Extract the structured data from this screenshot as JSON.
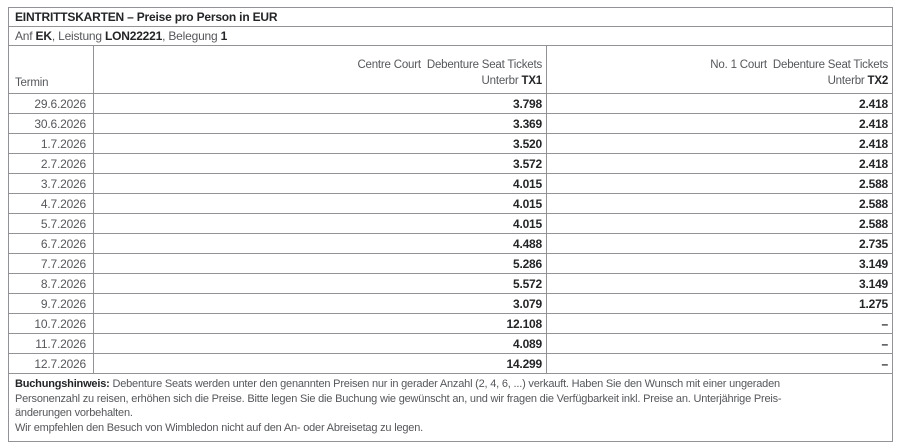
{
  "panel": {
    "title": "EINTRITTSKARTEN – Preise pro Person in EUR",
    "booking_line": {
      "anf_label": "Anf ",
      "anf_value": "EK",
      "leistung_label": ", Leistung ",
      "leistung_value": "LON22221",
      "belegung_label": ", Belegung ",
      "belegung_value": "1"
    }
  },
  "table": {
    "termin_header": "Termin",
    "columns": [
      {
        "line1": "Centre Court  Debenture Seat Tickets",
        "unterbr_label": "Unterbr ",
        "code": "TX1"
      },
      {
        "line1": "No. 1 Court  Debenture Seat Tickets",
        "unterbr_label": "Unterbr ",
        "code": "TX2"
      }
    ],
    "rows": [
      {
        "date": "29.6.2026",
        "price1": "3.798",
        "price2": "2.418"
      },
      {
        "date": "30.6.2026",
        "price1": "3.369",
        "price2": "2.418"
      },
      {
        "date": "1.7.2026",
        "price1": "3.520",
        "price2": "2.418"
      },
      {
        "date": "2.7.2026",
        "price1": "3.572",
        "price2": "2.418"
      },
      {
        "date": "3.7.2026",
        "price1": "4.015",
        "price2": "2.588"
      },
      {
        "date": "4.7.2026",
        "price1": "4.015",
        "price2": "2.588"
      },
      {
        "date": "5.7.2026",
        "price1": "4.015",
        "price2": "2.588"
      },
      {
        "date": "6.7.2026",
        "price1": "4.488",
        "price2": "2.735"
      },
      {
        "date": "7.7.2026",
        "price1": "5.286",
        "price2": "3.149"
      },
      {
        "date": "8.7.2026",
        "price1": "5.572",
        "price2": "3.149"
      },
      {
        "date": "9.7.2026",
        "price1": "3.079",
        "price2": "1.275"
      },
      {
        "date": "10.7.2026",
        "price1": "12.108",
        "price2": "–"
      },
      {
        "date": "11.7.2026",
        "price1": "4.089",
        "price2": "–"
      },
      {
        "date": "12.7.2026",
        "price1": "14.299",
        "price2": "–"
      }
    ]
  },
  "footer": {
    "label": "Buchungshinweis:",
    "line1_rest": " Debenture Seats werden unter den genannten Preisen nur in gerader Anzahl (2, 4, 6, ...) verkauft. Haben Sie den Wunsch mit einer ungeraden",
    "line2": "Personenzahl zu reisen, erhöhen sich die Preise. Bitte legen Sie die Buchung wie gewünscht an, und wir fragen die Verfügbarkeit inkl. Preise an. Unterjährige Preis-",
    "line3": "änderungen vorbehalten.",
    "line4": "Wir empfehlen den Besuch von Wimbledon nicht auf den An- oder Abreisetag zu legen."
  },
  "colors": {
    "text_gray": "#55575b",
    "text_dark": "#232527",
    "border": "#919396"
  }
}
